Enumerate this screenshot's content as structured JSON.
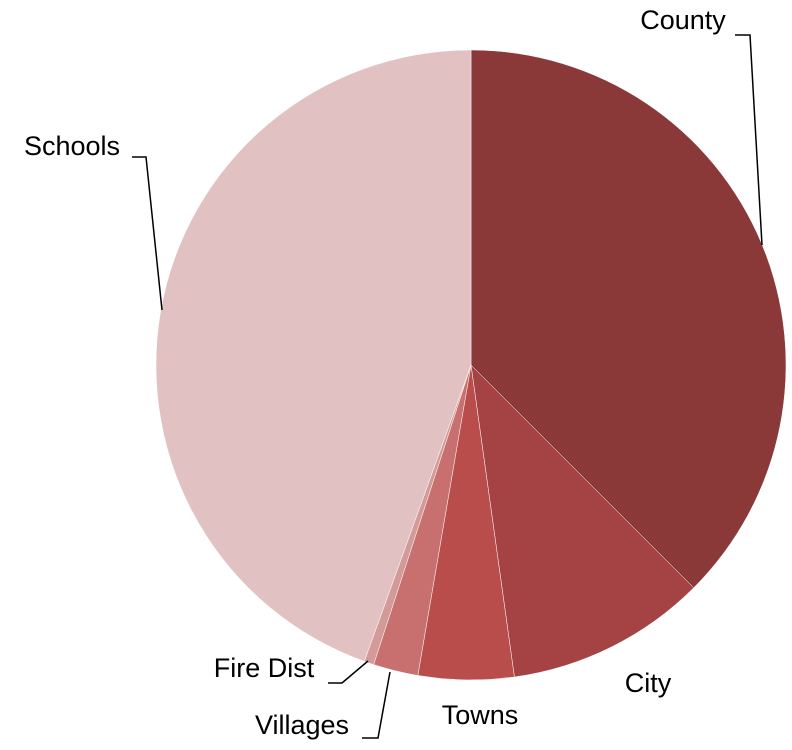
{
  "chart_data": {
    "type": "pie",
    "categories": [
      "County",
      "City",
      "Towns",
      "Villages",
      "Fire Dist",
      "Schools"
    ],
    "values": [
      37.5,
      10.3,
      4.9,
      2.3,
      0.5,
      44.5
    ],
    "colors": [
      "#8b3839",
      "#a54243",
      "#b84d4c",
      "#c87070",
      "#d49a9a",
      "#e2c1c2"
    ]
  }
}
